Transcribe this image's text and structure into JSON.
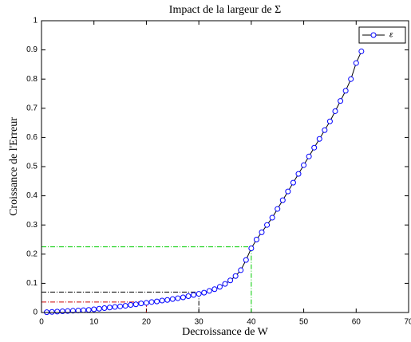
{
  "chart_data": {
    "type": "line",
    "title": "Impact de la largeur de Σ",
    "x_label": "Decroissance de W",
    "y_label": "Croissance de l'Erreur",
    "x": [
      1,
      2,
      3,
      4,
      5,
      6,
      7,
      8,
      9,
      10,
      11,
      12,
      13,
      14,
      15,
      16,
      17,
      18,
      19,
      20,
      21,
      22,
      23,
      24,
      25,
      26,
      27,
      28,
      29,
      30,
      31,
      32,
      33,
      34,
      35,
      36,
      37,
      38,
      39,
      40,
      41,
      42,
      43,
      44,
      45,
      46,
      47,
      48,
      49,
      50,
      51,
      52,
      53,
      54,
      55,
      56,
      57,
      58,
      59,
      60,
      61
    ],
    "series": [
      {
        "name": "ε",
        "color": "#0000ff",
        "line_color": "#000000",
        "values": [
          0.001,
          0.002,
          0.003,
          0.004,
          0.005,
          0.006,
          0.007,
          0.008,
          0.009,
          0.011,
          0.013,
          0.015,
          0.017,
          0.019,
          0.021,
          0.023,
          0.026,
          0.028,
          0.031,
          0.033,
          0.036,
          0.038,
          0.041,
          0.043,
          0.046,
          0.049,
          0.052,
          0.056,
          0.06,
          0.064,
          0.068,
          0.074,
          0.08,
          0.088,
          0.098,
          0.11,
          0.125,
          0.145,
          0.18,
          0.22,
          0.25,
          0.275,
          0.3,
          0.325,
          0.355,
          0.385,
          0.415,
          0.445,
          0.475,
          0.505,
          0.535,
          0.565,
          0.595,
          0.625,
          0.655,
          0.69,
          0.725,
          0.76,
          0.8,
          0.855,
          0.895
        ]
      }
    ],
    "guides": [
      {
        "x": 30,
        "y": 0.07,
        "color": "#000000"
      },
      {
        "x": 20,
        "y": 0.036,
        "color": "#cc0000"
      },
      {
        "x": 40,
        "y": 0.225,
        "color": "#00cc00"
      }
    ],
    "xlim": [
      0,
      70
    ],
    "xticks": [
      0,
      10,
      20,
      30,
      40,
      50,
      60,
      70
    ],
    "ylim": [
      0,
      1
    ],
    "yticks": [
      0,
      0.1,
      0.2,
      0.3,
      0.4,
      0.5,
      0.6,
      0.7,
      0.8,
      0.9,
      1
    ],
    "legend": "top-right"
  }
}
